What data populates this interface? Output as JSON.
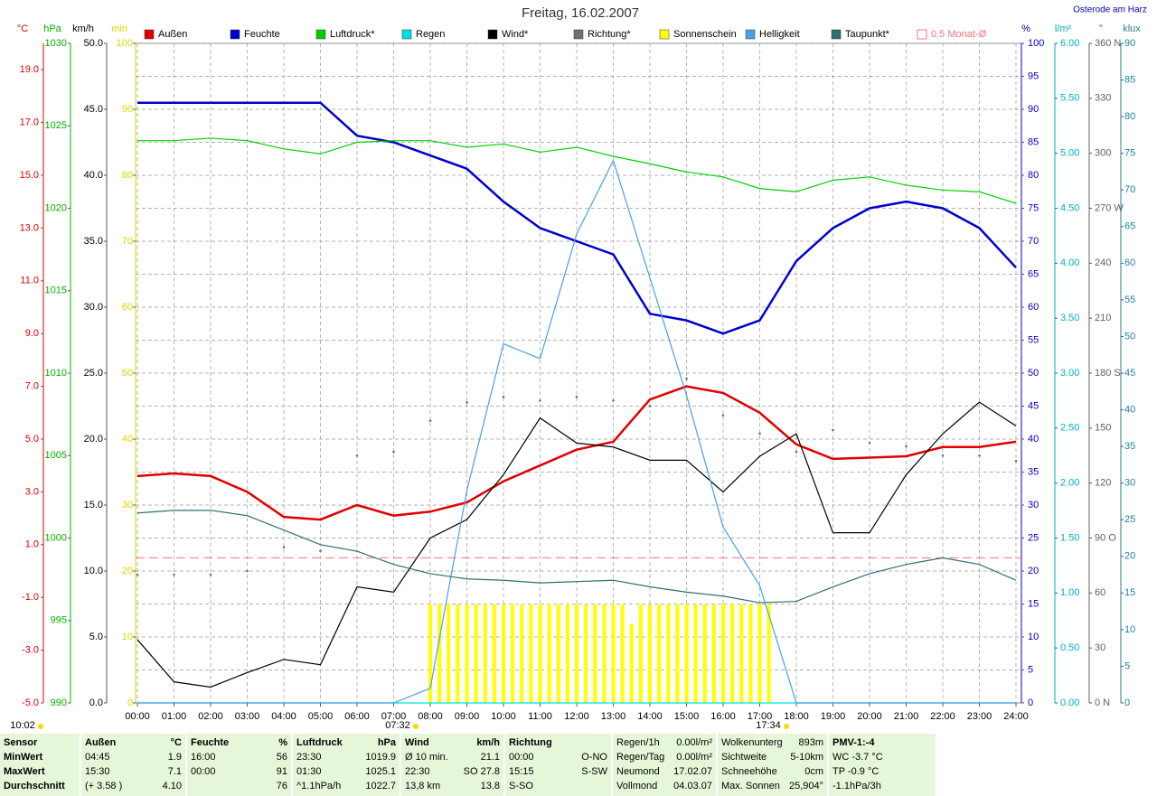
{
  "chart_data": {
    "type": "line",
    "title": "Freitag, 16.02.2007",
    "location": "Osterode am Harz",
    "grid": true,
    "xlim": [
      0,
      24
    ],
    "xticks": [
      {
        "value": 0,
        "label": "00:00"
      },
      {
        "value": 1,
        "label": "01:00"
      },
      {
        "value": 2,
        "label": "02:00"
      },
      {
        "value": 3,
        "label": "03:00"
      },
      {
        "value": 4,
        "label": "04:00"
      },
      {
        "value": 5,
        "label": "05:00"
      },
      {
        "value": 6,
        "label": "06:00"
      },
      {
        "value": 7,
        "label": "07:00"
      },
      {
        "value": 8,
        "label": "08:00"
      },
      {
        "value": 9,
        "label": "09:00"
      },
      {
        "value": 10,
        "label": "10:00"
      },
      {
        "value": 11,
        "label": "11:00"
      },
      {
        "value": 12,
        "label": "12:00"
      },
      {
        "value": 13,
        "label": "13:00"
      },
      {
        "value": 14,
        "label": "14:00"
      },
      {
        "value": 15,
        "label": "15:00"
      },
      {
        "value": 16,
        "label": "16:00"
      },
      {
        "value": 17,
        "label": "17:00"
      },
      {
        "value": 18,
        "label": "18:00"
      },
      {
        "value": 19,
        "label": "19:00"
      },
      {
        "value": 20,
        "label": "20:00"
      },
      {
        "value": 21,
        "label": "21:00"
      },
      {
        "value": 22,
        "label": "22:00"
      },
      {
        "value": 23,
        "label": "23:00"
      },
      {
        "value": 24,
        "label": "24:00"
      }
    ],
    "axes": [
      {
        "id": "y",
        "label": "°C",
        "color": "#e00000",
        "ylim": [
          -5,
          20
        ],
        "yticks": [
          {
            "value": -5,
            "label": "-5.0"
          },
          {
            "value": -3,
            "label": "-3.0"
          },
          {
            "value": -1,
            "label": "-1.0"
          },
          {
            "value": 1,
            "label": "1.0"
          },
          {
            "value": 3,
            "label": "3.0"
          },
          {
            "value": 5,
            "label": "5.0"
          },
          {
            "value": 7,
            "label": "7.0"
          },
          {
            "value": 9,
            "label": "9.0"
          },
          {
            "value": 11,
            "label": "11.0"
          },
          {
            "value": 13,
            "label": "13.0"
          },
          {
            "value": 15,
            "label": "15.0"
          },
          {
            "value": 17,
            "label": "17.0"
          },
          {
            "value": 19,
            "label": "19.0"
          }
        ]
      },
      {
        "id": "y2",
        "label": "hPa",
        "color": "#00b000",
        "ylim": [
          990,
          1030
        ],
        "yticks": [
          990,
          995,
          1000,
          1005,
          1010,
          1015,
          1020,
          1025,
          1030
        ]
      },
      {
        "id": "y3",
        "label": "km/h",
        "color": "#000000",
        "ylim": [
          0,
          50
        ],
        "yticks": [
          {
            "value": 0,
            "label": "0.0"
          },
          {
            "value": 5,
            "label": "5.0"
          },
          {
            "value": 10,
            "label": "10.0"
          },
          {
            "value": 15,
            "label": "15.0"
          },
          {
            "value": 20,
            "label": "20.0"
          },
          {
            "value": 25,
            "label": "25.0"
          },
          {
            "value": 30,
            "label": "30.0"
          },
          {
            "value": 35,
            "label": "35.0"
          },
          {
            "value": 40,
            "label": "40.0"
          },
          {
            "value": 45,
            "label": "45.0"
          },
          {
            "value": 50,
            "label": "50.0"
          }
        ]
      },
      {
        "id": "y4",
        "label": "min",
        "color": "#d8d800",
        "ylim": [
          0,
          100
        ],
        "yticks": [
          0,
          10,
          20,
          30,
          40,
          50,
          60,
          70,
          80,
          90,
          100
        ]
      },
      {
        "id": "y5",
        "label": "%",
        "color": "#0000c0",
        "ylim": [
          0,
          100
        ],
        "yticks": [
          0,
          5,
          10,
          15,
          20,
          25,
          30,
          35,
          40,
          45,
          50,
          55,
          60,
          65,
          70,
          75,
          80,
          85,
          90,
          95,
          100
        ]
      },
      {
        "id": "y6",
        "label": "l/m²",
        "color": "#00b0c0",
        "ylim": [
          0,
          6
        ],
        "yticks": [
          {
            "value": 0,
            "label": "0.00"
          },
          {
            "value": 0.5,
            "label": "0.50"
          },
          {
            "value": 1,
            "label": "1.00"
          },
          {
            "value": 1.5,
            "label": "1.50"
          },
          {
            "value": 2,
            "label": "2.00"
          },
          {
            "value": 2.5,
            "label": "2.50"
          },
          {
            "value": 3,
            "label": "3.00"
          },
          {
            "value": 3.5,
            "label": "3.50"
          },
          {
            "value": 4,
            "label": "4.00"
          },
          {
            "value": 4.5,
            "label": "4.50"
          },
          {
            "value": 5,
            "label": "5.00"
          },
          {
            "value": 5.5,
            "label": "5.50"
          },
          {
            "value": 6,
            "label": "6.00"
          }
        ]
      },
      {
        "id": "y7",
        "label": "°",
        "color": "#606060",
        "ylim": [
          0,
          360
        ],
        "yticks": [
          {
            "value": 0,
            "label": "0 N"
          },
          30,
          60,
          {
            "value": 90,
            "label": "90 O"
          },
          120,
          150,
          {
            "value": 180,
            "label": "180 S"
          },
          210,
          240,
          {
            "value": 270,
            "label": "270 W"
          },
          300,
          330,
          {
            "value": 360,
            "label": "360 N"
          }
        ]
      },
      {
        "id": "y8",
        "label": "klux",
        "color": "#2080a0",
        "ylim": [
          0,
          90
        ],
        "yticks": [
          0,
          5,
          10,
          15,
          20,
          25,
          30,
          35,
          40,
          45,
          50,
          55,
          60,
          65,
          70,
          75,
          80,
          85,
          90
        ]
      }
    ],
    "x": [
      0,
      1,
      2,
      3,
      4,
      5,
      6,
      7,
      8,
      9,
      10,
      11,
      12,
      13,
      14,
      15,
      16,
      17,
      18,
      19,
      20,
      21,
      22,
      23,
      24
    ],
    "series": [
      {
        "name": "Außen",
        "color": "#e00000",
        "axis": "y",
        "values": [
          3.6,
          3.7,
          3.6,
          3.0,
          2.05,
          1.95,
          2.5,
          2.1,
          2.25,
          2.6,
          3.4,
          4.0,
          4.6,
          4.9,
          6.5,
          7.0,
          6.75,
          6.0,
          4.8,
          4.25,
          4.3,
          4.35,
          4.7,
          4.7,
          4.9
        ]
      },
      {
        "name": "Feuchte",
        "color": "#0000d0",
        "axis": "y5",
        "values": [
          91,
          91,
          91,
          91,
          91,
          91,
          86,
          85,
          83,
          81,
          76,
          72,
          70,
          68,
          59,
          58,
          56,
          58,
          67,
          72,
          75,
          76,
          75,
          72,
          66
        ]
      },
      {
        "name": "Luftdruck*",
        "color": "#00d000",
        "axis": "y2",
        "values": [
          1024.1,
          1024.1,
          1024.25,
          1024.1,
          1023.6,
          1023.3,
          1024.0,
          1024.1,
          1024.1,
          1023.7,
          1023.9,
          1023.4,
          1023.7,
          1023.15,
          1022.7,
          1022.2,
          1021.9,
          1021.2,
          1021.0,
          1021.7,
          1021.9,
          1021.4,
          1021.1,
          1021.0,
          1020.3
        ]
      },
      {
        "name": "Regen",
        "color": "#00e0e0",
        "axis": "y6",
        "values": [
          0,
          0,
          0,
          0,
          0,
          0,
          0,
          0,
          0,
          0,
          0,
          0,
          0,
          0,
          0,
          0,
          0,
          0,
          0,
          0,
          0,
          0,
          0,
          0,
          0
        ]
      },
      {
        "name": "Wind*",
        "color": "#000000",
        "axis": "y3",
        "values": [
          4.8,
          1.6,
          1.2,
          2.3,
          3.3,
          2.9,
          8.8,
          8.4,
          12.5,
          13.9,
          17.3,
          21.6,
          19.7,
          19.4,
          18.4,
          18.4,
          16.0,
          18.7,
          20.4,
          12.9,
          12.9,
          17.3,
          20.4,
          22.8,
          21.0
        ]
      },
      {
        "name": "Richtung*",
        "color": "#707070",
        "axis": "y7",
        "type": "scatter",
        "values": [
          70,
          70,
          70,
          72,
          85,
          83,
          135,
          137,
          154,
          164,
          167,
          165,
          167,
          165,
          162,
          177,
          157,
          147,
          137,
          149,
          142,
          140,
          135,
          135,
          132
        ]
      },
      {
        "name": "Sonnenschein",
        "color": "#ffff00",
        "axis": "y4",
        "type": "bar",
        "x": [
          8,
          8.25,
          8.5,
          8.75,
          9,
          9.25,
          9.5,
          9.75,
          10,
          10.25,
          10.5,
          10.75,
          11,
          11.25,
          11.5,
          11.75,
          12,
          12.25,
          12.5,
          12.75,
          13,
          13.25,
          13.5,
          13.75,
          14,
          14.25,
          14.5,
          14.75,
          15,
          15.25,
          15.5,
          15.75,
          16,
          16.25,
          16.5,
          16.75,
          17,
          17.25
        ],
        "values": [
          15,
          15,
          15,
          15,
          15,
          15,
          15,
          15,
          15,
          15,
          15,
          15,
          15,
          15,
          15,
          15,
          15,
          15,
          15,
          15,
          15,
          15,
          12,
          15,
          15,
          15,
          15,
          15,
          15,
          15,
          15,
          15,
          15,
          15,
          15,
          15,
          15,
          15
        ]
      },
      {
        "name": "Helligkeit",
        "color": "#4aa0e8",
        "axis": "y8",
        "values": [
          0,
          0,
          0,
          0,
          0,
          0,
          0,
          0,
          2,
          29,
          49,
          47,
          64,
          74,
          58,
          42,
          24,
          16,
          0,
          0,
          0,
          0,
          0,
          0,
          0
        ]
      },
      {
        "name": "Taupunkt*",
        "color": "#2e7070",
        "axis": "y",
        "values": [
          2.2,
          2.3,
          2.3,
          2.1,
          1.55,
          1.0,
          0.75,
          0.25,
          -0.1,
          -0.3,
          -0.35,
          -0.45,
          -0.4,
          -0.35,
          -0.6,
          -0.8,
          -0.95,
          -1.2,
          -1.15,
          -0.6,
          -0.1,
          0.25,
          0.5,
          0.25,
          -0.35
        ]
      }
    ],
    "reference": {
      "name": "0.5 Monat-Ø",
      "color": "#ff7080",
      "axis": "y",
      "value": 0.5
    },
    "annotations": [
      "10:02",
      "07:32",
      "17:34"
    ]
  },
  "summary": [
    {
      "header": [
        "Sensor"
      ],
      "rows": [
        [
          "MinWert"
        ],
        [
          "MaxWert"
        ],
        [
          "Durchschnitt"
        ]
      ]
    },
    {
      "header": [
        "Außen",
        "°C"
      ],
      "rows": [
        [
          "04:45",
          "1.9"
        ],
        [
          "15:30",
          "7.1"
        ],
        [
          "(+ 3.58 )",
          "4.10"
        ]
      ]
    },
    {
      "header": [
        "Feuchte",
        "%"
      ],
      "rows": [
        [
          "16:00",
          "56"
        ],
        [
          "00:00",
          "91"
        ],
        [
          "76"
        ]
      ]
    },
    {
      "header": [
        "Luftdruck",
        "hPa"
      ],
      "rows": [
        [
          "23:30",
          "1019.9"
        ],
        [
          "01:30",
          "1025.1"
        ],
        [
          "^1.1hPa/h",
          "1022.7"
        ]
      ]
    },
    {
      "header": [
        "Wind",
        "km/h"
      ],
      "rows": [
        [
          "Ø 10 min.",
          "21.1"
        ],
        [
          "22:30",
          "SO 27.8"
        ],
        [
          "13,8 km",
          "13.8"
        ]
      ]
    },
    {
      "header": [
        "Richtung"
      ],
      "rows": [
        [
          "00:00",
          "O-NO"
        ],
        [
          "15:15",
          "S-SW"
        ],
        [
          "S-SO"
        ]
      ]
    },
    {
      "rows": [
        [
          "Regen/1h",
          "0.00l/m²"
        ],
        [
          "Regen/Tag",
          "0.00l/m²"
        ],
        [
          "Neumond",
          "17.02.07"
        ],
        [
          "Vollmond",
          "04.03.07"
        ]
      ]
    },
    {
      "rows": [
        [
          "Wolkenunterg",
          "893m"
        ],
        [
          "Sichtweite",
          "5-10km"
        ],
        [
          "Schneehöhe",
          "0cm"
        ],
        [
          "Max. Sonnen",
          "25,904°"
        ]
      ]
    },
    {
      "header": [
        "PMV-1:-4"
      ],
      "rows": [
        [
          "WC -3.7 °C"
        ],
        [
          "TP -0.9 °C"
        ],
        [
          "-1.1hPa/3h"
        ]
      ]
    }
  ]
}
